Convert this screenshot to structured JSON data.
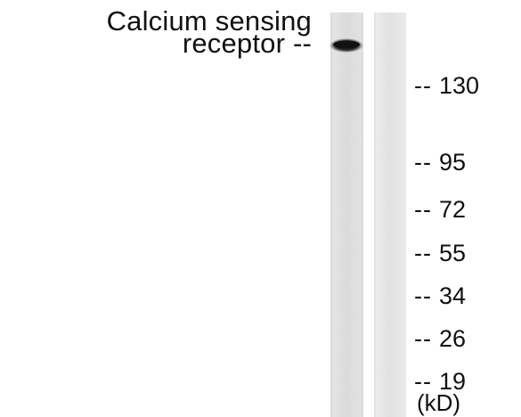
{
  "protein": {
    "line1": "Calcium sensing",
    "line2": "receptor --"
  },
  "markers": [
    {
      "dash": "--",
      "value": "130"
    },
    {
      "dash": "--",
      "value": "95"
    },
    {
      "dash": "--",
      "value": "72"
    },
    {
      "dash": "--",
      "value": "55"
    },
    {
      "dash": "--",
      "value": "34"
    },
    {
      "dash": "--",
      "value": "26"
    },
    {
      "dash": "--",
      "value": "19"
    }
  ],
  "unit_label": "(kD)",
  "colors": {
    "lane_bg": "#e4e4e4",
    "band": "#151515",
    "text": "#111111"
  }
}
